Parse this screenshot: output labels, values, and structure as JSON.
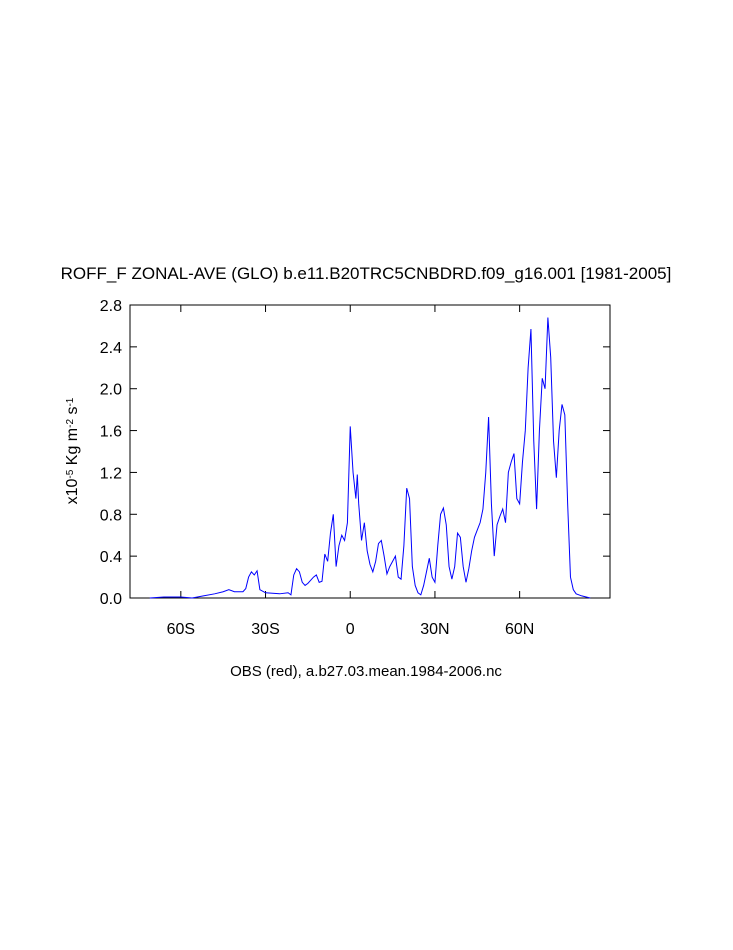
{
  "chart_data": {
    "type": "line",
    "title": "ROFF_F ZONAL-AVE (GLO) b.e11.B20TRC5CNBDRD.f09_g16.001 [1981-2005]",
    "xlabel": "OBS (red), a.b27.03.mean.1984-2006.nc",
    "ylabel": [
      "x10",
      "-5",
      " Kg m",
      "-2",
      " s",
      "-1"
    ],
    "xlim": [
      -78,
      92
    ],
    "ylim": [
      0,
      2.8
    ],
    "xticks": [
      {
        "value": -60,
        "label": "60S"
      },
      {
        "value": -30,
        "label": "30S"
      },
      {
        "value": 0,
        "label": "0"
      },
      {
        "value": 30,
        "label": "30N"
      },
      {
        "value": 60,
        "label": "60N"
      }
    ],
    "yticks": [
      {
        "value": 0,
        "label": "0.0"
      },
      {
        "value": 0.4,
        "label": "0.4"
      },
      {
        "value": 0.8,
        "label": "0.8"
      },
      {
        "value": 1.2,
        "label": "1.2"
      },
      {
        "value": 1.6,
        "label": "1.6"
      },
      {
        "value": 2.0,
        "label": "2.0"
      },
      {
        "value": 2.4,
        "label": "2.4"
      },
      {
        "value": 2.8,
        "label": "2.8"
      }
    ],
    "series": [
      {
        "color": "#0000ff",
        "x": [
          -71,
          -66,
          -60,
          -56,
          -52,
          -48,
          -45,
          -43,
          -41,
          -38,
          -37,
          -36,
          -35,
          -34,
          -33,
          -32,
          -30,
          -25,
          -22,
          -21,
          -20,
          -19,
          -18,
          -17,
          -16,
          -15,
          -13,
          -12,
          -11,
          -10,
          -9,
          -8,
          -7,
          -6,
          -5,
          -4,
          -3,
          -2,
          -1,
          0,
          1,
          2,
          2.5,
          3,
          4,
          5,
          6,
          7,
          8,
          9,
          10,
          11,
          12,
          13,
          14,
          15,
          16,
          17,
          18,
          19,
          20,
          21,
          22,
          23,
          24,
          25,
          26,
          27,
          28,
          29,
          30,
          31,
          32,
          33,
          34,
          35,
          36,
          37,
          38,
          39,
          40,
          41,
          42,
          43,
          44,
          45,
          46,
          47,
          48,
          49,
          50,
          51,
          52,
          53,
          54,
          55,
          56,
          57,
          58,
          59,
          60,
          61,
          62,
          63,
          64,
          65,
          66,
          67,
          68,
          69,
          70,
          71,
          72,
          73,
          74,
          75,
          76,
          77,
          78,
          79,
          80,
          82,
          85
        ],
        "values": [
          0,
          0.01,
          0.01,
          0,
          0.02,
          0.04,
          0.06,
          0.08,
          0.06,
          0.06,
          0.09,
          0.2,
          0.25,
          0.22,
          0.26,
          0.08,
          0.05,
          0.04,
          0.05,
          0.03,
          0.22,
          0.28,
          0.25,
          0.15,
          0.12,
          0.14,
          0.2,
          0.22,
          0.15,
          0.16,
          0.42,
          0.35,
          0.62,
          0.8,
          0.3,
          0.5,
          0.6,
          0.55,
          0.72,
          1.64,
          1.2,
          0.95,
          1.18,
          0.9,
          0.55,
          0.72,
          0.45,
          0.32,
          0.25,
          0.35,
          0.52,
          0.55,
          0.4,
          0.23,
          0.3,
          0.35,
          0.4,
          0.2,
          0.18,
          0.5,
          1.05,
          0.95,
          0.3,
          0.12,
          0.05,
          0.03,
          0.12,
          0.25,
          0.38,
          0.2,
          0.15,
          0.5,
          0.8,
          0.86,
          0.7,
          0.3,
          0.18,
          0.3,
          0.62,
          0.58,
          0.3,
          0.15,
          0.28,
          0.45,
          0.58,
          0.65,
          0.72,
          0.85,
          1.2,
          1.73,
          0.9,
          0.4,
          0.7,
          0.78,
          0.85,
          0.72,
          1.2,
          1.3,
          1.38,
          0.95,
          0.9,
          1.3,
          1.6,
          2.2,
          2.57,
          1.5,
          0.85,
          1.6,
          2.1,
          2.0,
          2.68,
          2.3,
          1.5,
          1.15,
          1.6,
          1.85,
          1.75,
          0.9,
          0.2,
          0.08,
          0.04,
          0.02,
          0
        ]
      }
    ]
  }
}
